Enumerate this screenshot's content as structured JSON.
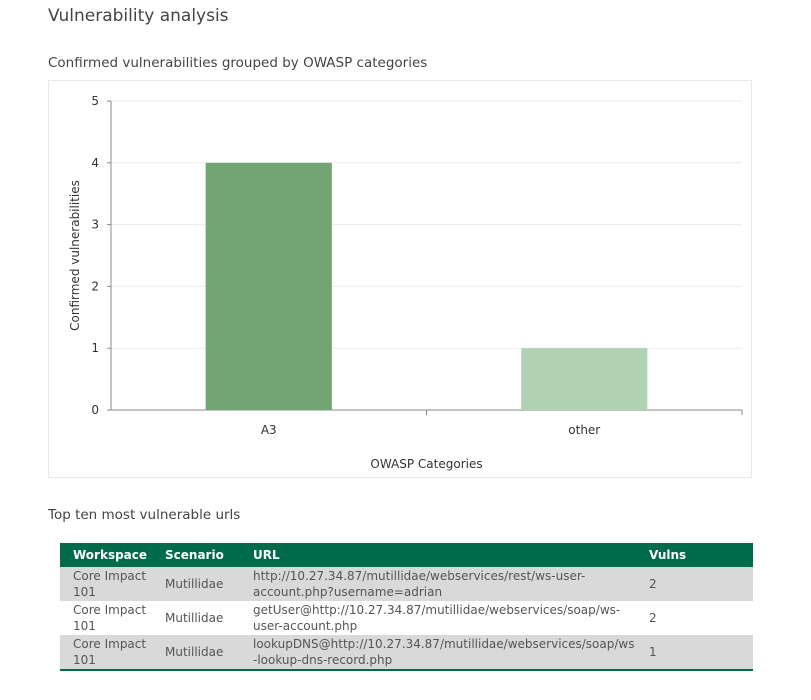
{
  "page": {
    "title": "Vulnerability analysis"
  },
  "chart_section": {
    "title": "Confirmed vulnerabilities grouped by OWASP categories"
  },
  "chart_data": {
    "type": "bar",
    "categories": [
      "A3",
      "other"
    ],
    "values": [
      4,
      1
    ],
    "colors": [
      "#72a474",
      "#b0d1b2"
    ],
    "title": "",
    "xlabel": "OWASP Categories",
    "ylabel": "Confirmed vulnerabilities",
    "ylim": [
      0,
      5
    ],
    "yticks": [
      0,
      1,
      2,
      3,
      4,
      5
    ],
    "grid": true,
    "legend": "none"
  },
  "table_section": {
    "title": "Top ten most vulnerable urls",
    "columns": [
      "Workspace",
      "Scenario",
      "URL",
      "Vulns"
    ],
    "rows": [
      {
        "workspace": "Core Impact 101",
        "scenario": "Mutillidae",
        "url": "http://10.27.34.87/mutillidae/webservices/rest/ws-user-account.php?username=adrian",
        "vulns": "2"
      },
      {
        "workspace": "Core Impact 101",
        "scenario": "Mutillidae",
        "url": "getUser@http://10.27.34.87/mutillidae/webservices/soap/ws-user-account.php",
        "vulns": "2"
      },
      {
        "workspace": "Core Impact 101",
        "scenario": "Mutillidae",
        "url": "lookupDNS@http://10.27.34.87/mutillidae/webservices/soap/ws-lookup-dns-record.php",
        "vulns": "1"
      }
    ]
  }
}
